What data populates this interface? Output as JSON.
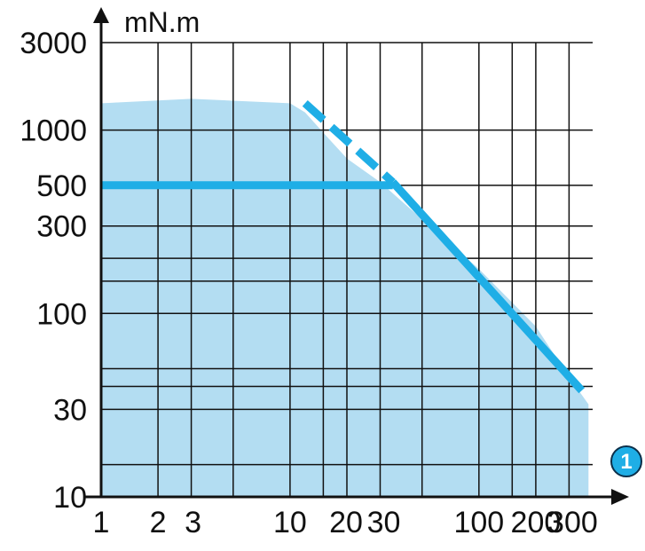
{
  "chart_data": {
    "type": "line",
    "x_scale": "log",
    "y_scale": "log",
    "xlim": [
      1,
      400
    ],
    "ylim": [
      10,
      3000
    ],
    "x_ticks": [
      1,
      2,
      3,
      10,
      20,
      30,
      100,
      200,
      300
    ],
    "x_tick_labels": [
      "1",
      "2",
      "3",
      "10",
      "20",
      "30",
      "100",
      "200",
      "300"
    ],
    "y_ticks": [
      10,
      30,
      100,
      300,
      500,
      1000,
      3000
    ],
    "y_tick_labels": [
      "10",
      "30",
      "100",
      "300",
      "500",
      "1000",
      "3000"
    ],
    "x_grid": [
      1,
      2,
      3,
      5,
      10,
      15,
      20,
      30,
      50,
      100,
      150,
      200,
      300
    ],
    "y_grid": [
      10,
      15,
      30,
      40,
      50,
      100,
      150,
      200,
      300,
      500,
      1000,
      3000
    ],
    "grid": true,
    "ylabel": "mN.m",
    "x_axis_marker": "1",
    "series": [
      {
        "style": "area",
        "points": [
          [
            1,
            1400
          ],
          [
            3,
            1480
          ],
          [
            10,
            1400
          ],
          [
            12,
            1250
          ],
          [
            16,
            900
          ],
          [
            20,
            700
          ],
          [
            30,
            520
          ],
          [
            40,
            400
          ],
          [
            100,
            175
          ],
          [
            200,
            85
          ],
          [
            300,
            45
          ],
          [
            380,
            32
          ],
          [
            380,
            10
          ],
          [
            1,
            10
          ]
        ]
      },
      {
        "style": "solid",
        "points": [
          [
            1,
            500
          ],
          [
            35,
            500
          ]
        ]
      },
      {
        "style": "dashed",
        "points": [
          [
            12,
            1400
          ],
          [
            35,
            520
          ]
        ]
      },
      {
        "style": "solid",
        "points": [
          [
            35,
            520
          ],
          [
            350,
            38
          ]
        ]
      }
    ],
    "colors": {
      "area": "#b3ddf2",
      "curve": "#1faee6",
      "grid": "#111111",
      "marker": "#1faee6"
    }
  }
}
